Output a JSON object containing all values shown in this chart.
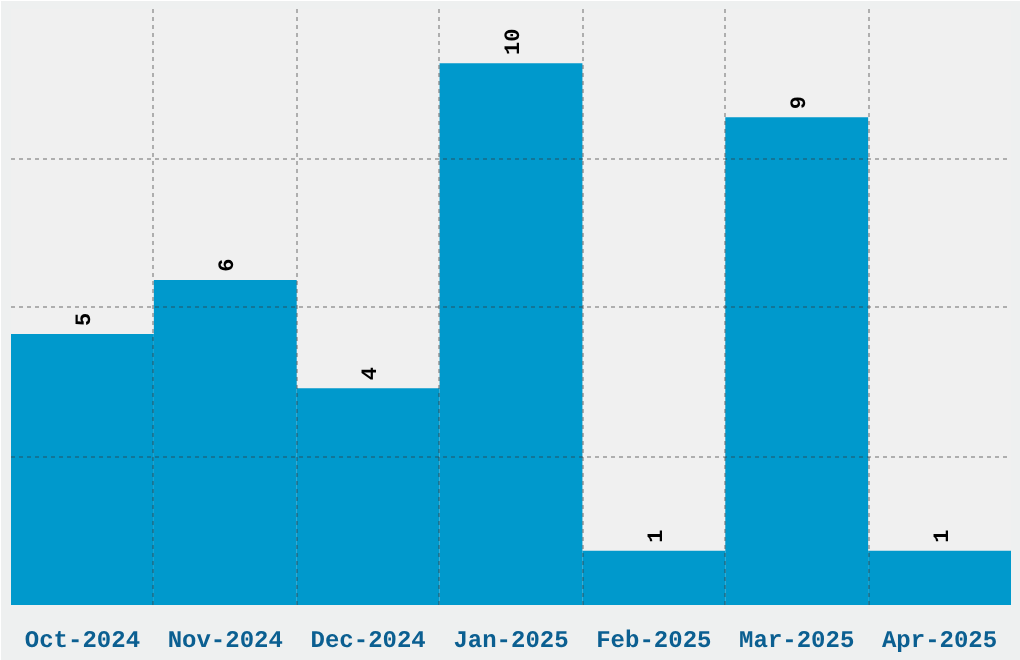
{
  "chart_data": {
    "type": "bar",
    "categories": [
      "Oct-2024",
      "Nov-2024",
      "Dec-2024",
      "Jan-2025",
      "Feb-2025",
      "Mar-2025",
      "Apr-2025"
    ],
    "values": [
      5,
      6,
      4,
      10,
      1,
      9,
      1
    ],
    "color": "#0099cc",
    "ylim": [
      0,
      11
    ],
    "yticks": [
      {
        "value": 2.75,
        "label": null
      },
      {
        "value": 5.5,
        "label": null
      },
      {
        "value": 8.25,
        "label": null
      }
    ],
    "tick_labels": "x",
    "grid": true,
    "data_labels": true
  }
}
